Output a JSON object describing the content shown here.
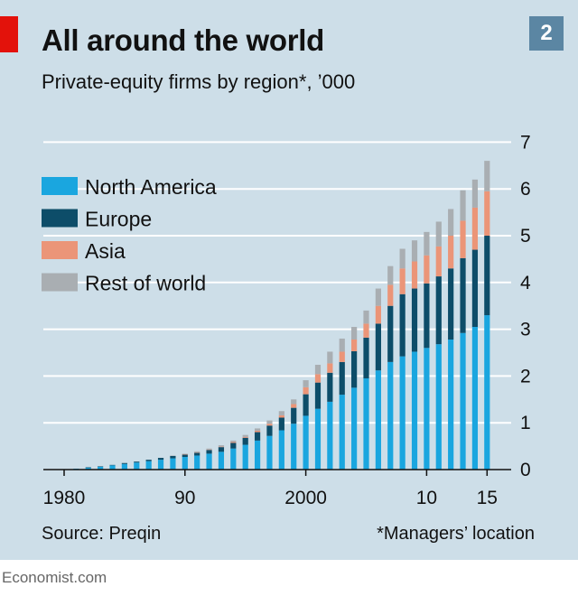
{
  "header": {
    "title": "All around the world",
    "subtitle": "Private-equity firms by region*, ’000",
    "badge": "2"
  },
  "footer": {
    "source": "Source: Preqin",
    "footnote": "*Managers’ location",
    "brand": "Economist.com"
  },
  "colors": {
    "panel": "#cddee8",
    "accent_red": "#e3120b",
    "north_america": "#1aa6df",
    "europe": "#0d4d69",
    "asia": "#eb9578",
    "rest_of_world": "#a9aeb2",
    "gridline": "#ffffff"
  },
  "chart_data": {
    "type": "bar",
    "stacked": true,
    "title": "All around the world",
    "subtitle": "Private-equity firms by region*, ’000",
    "x": [
      1980,
      1981,
      1982,
      1983,
      1984,
      1985,
      1986,
      1987,
      1988,
      1989,
      1990,
      1991,
      1992,
      1993,
      1994,
      1995,
      1996,
      1997,
      1998,
      1999,
      2000,
      2001,
      2002,
      2003,
      2004,
      2005,
      2006,
      2007,
      2008,
      2009,
      2010,
      2011,
      2012,
      2013,
      2014,
      2015
    ],
    "x_tick_labels": [
      {
        "x": 1980,
        "label": "1980"
      },
      {
        "x": 1990,
        "label": "90"
      },
      {
        "x": 2000,
        "label": "2000"
      },
      {
        "x": 2010,
        "label": "10"
      },
      {
        "x": 2015,
        "label": "15"
      }
    ],
    "y_ticks": [
      0,
      1,
      2,
      3,
      4,
      5,
      6,
      7
    ],
    "ylim": [
      0,
      7
    ],
    "y_axis_side": "right",
    "grid": true,
    "legend_position": "top-left",
    "series": [
      {
        "name": "North America",
        "color": "#1aa6df",
        "values": [
          0.01,
          0.02,
          0.04,
          0.06,
          0.09,
          0.12,
          0.15,
          0.18,
          0.21,
          0.24,
          0.27,
          0.3,
          0.34,
          0.38,
          0.45,
          0.53,
          0.62,
          0.72,
          0.84,
          0.98,
          1.15,
          1.3,
          1.45,
          1.6,
          1.75,
          1.95,
          2.12,
          2.3,
          2.42,
          2.52,
          2.6,
          2.68,
          2.78,
          2.92,
          3.05,
          3.3
        ]
      },
      {
        "name": "Europe",
        "color": "#0d4d69",
        "values": [
          0.0,
          0.0,
          0.01,
          0.01,
          0.01,
          0.02,
          0.02,
          0.03,
          0.04,
          0.05,
          0.05,
          0.06,
          0.08,
          0.1,
          0.12,
          0.15,
          0.18,
          0.22,
          0.27,
          0.34,
          0.46,
          0.56,
          0.62,
          0.7,
          0.78,
          0.87,
          1.0,
          1.2,
          1.33,
          1.35,
          1.38,
          1.45,
          1.52,
          1.6,
          1.65,
          1.7
        ]
      },
      {
        "name": "Asia",
        "color": "#eb9578",
        "values": [
          0.0,
          0.0,
          0.0,
          0.0,
          0.0,
          0.0,
          0.0,
          0.0,
          0.0,
          0.0,
          0.01,
          0.01,
          0.01,
          0.01,
          0.02,
          0.02,
          0.03,
          0.04,
          0.05,
          0.08,
          0.15,
          0.18,
          0.2,
          0.22,
          0.25,
          0.3,
          0.38,
          0.45,
          0.55,
          0.58,
          0.6,
          0.64,
          0.7,
          0.8,
          0.9,
          0.95
        ]
      },
      {
        "name": "Rest of world",
        "color": "#a9aeb2",
        "values": [
          0.0,
          0.0,
          0.0,
          0.0,
          0.0,
          0.0,
          0.0,
          0.0,
          0.0,
          0.01,
          0.01,
          0.02,
          0.02,
          0.03,
          0.03,
          0.04,
          0.05,
          0.07,
          0.09,
          0.1,
          0.15,
          0.2,
          0.25,
          0.28,
          0.27,
          0.28,
          0.37,
          0.4,
          0.42,
          0.45,
          0.5,
          0.53,
          0.57,
          0.65,
          0.6,
          0.65
        ]
      }
    ]
  }
}
